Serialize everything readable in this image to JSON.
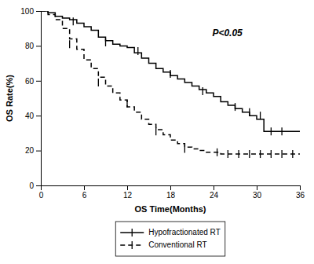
{
  "chart_data": {
    "type": "step",
    "xlabel": "OS Time(Months)",
    "ylabel": "OS Rate(%)",
    "xlim": [
      0,
      36
    ],
    "ylim": [
      0,
      100
    ],
    "xticks": [
      0,
      6,
      12,
      18,
      24,
      30,
      36
    ],
    "yticks": [
      0,
      20,
      40,
      60,
      80,
      100
    ],
    "annotation": "P<0.05",
    "legend": "bottom",
    "grid": false,
    "series": [
      {
        "name": "Hypofractionated RT",
        "color": "#000000",
        "line_style": "solid",
        "x": [
          0,
          1,
          2,
          3,
          4,
          5,
          6,
          7,
          8,
          9,
          10,
          11,
          12,
          13,
          14,
          15,
          16,
          17,
          18,
          19,
          20,
          21,
          22,
          23,
          24,
          25,
          26,
          27,
          28,
          29,
          30,
          31,
          32,
          33,
          34,
          35,
          36
        ],
        "values": [
          100,
          99,
          97,
          96,
          95,
          93,
          91,
          89,
          85,
          83,
          81,
          80,
          79,
          76,
          73,
          70,
          67,
          65,
          63,
          61,
          59,
          57,
          55,
          53,
          51,
          48,
          46,
          44,
          42,
          40,
          38,
          31,
          31,
          31,
          31,
          31,
          31
        ],
        "censor_x": [
          4.5,
          9,
          13.5,
          18,
          22.5,
          27,
          29,
          30.5,
          32,
          33.5
        ],
        "censor_values": [
          94,
          82,
          77,
          64,
          54,
          45,
          42,
          40,
          31,
          31
        ]
      },
      {
        "name": "Conventional RT",
        "color": "#000000",
        "line_style": "dashed",
        "x": [
          0,
          1,
          2,
          3,
          4,
          5,
          6,
          7,
          8,
          9,
          10,
          11,
          12,
          13,
          14,
          15,
          16,
          17,
          18,
          19,
          20,
          21,
          22,
          23,
          24,
          25,
          26,
          27,
          28,
          29,
          30,
          31,
          32,
          33,
          34,
          35,
          36
        ],
        "values": [
          100,
          98,
          95,
          90,
          84,
          78,
          72,
          67,
          62,
          57,
          53,
          49,
          45,
          42,
          38,
          35,
          32,
          29,
          26,
          24,
          22,
          21,
          20,
          19,
          19,
          18,
          18,
          18,
          18,
          18,
          18,
          18,
          18,
          18,
          18,
          18,
          18
        ],
        "censor_x": [
          4,
          8,
          12,
          16,
          20,
          24.5,
          26,
          27.5,
          29,
          30.5,
          32,
          33.5,
          35
        ],
        "censor_values": [
          81,
          59,
          47,
          31,
          21,
          19,
          18,
          18,
          18,
          18,
          18,
          18,
          18
        ]
      }
    ]
  }
}
